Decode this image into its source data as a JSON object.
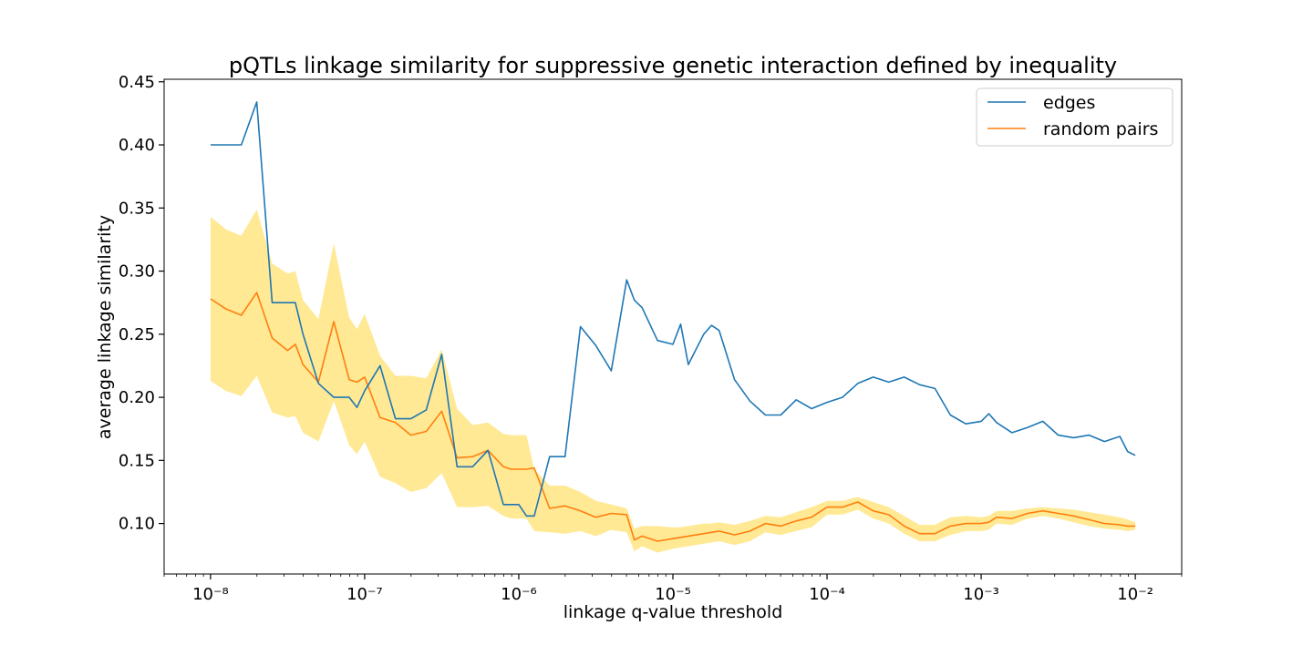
{
  "chart_data": {
    "type": "line",
    "title": "pQTLs linkage similarity for suppressive genetic interaction defined by inequality",
    "xlabel": "linkage q-value threshold",
    "ylabel": "average linkage similarity",
    "xscale": "log",
    "xlim": [
      5e-09,
      0.02
    ],
    "ylim": [
      0.06,
      0.452
    ],
    "grid": false,
    "legend_position": "top-right",
    "x_log10": [
      -8.0,
      -7.9,
      -7.8,
      -7.7,
      -7.6,
      -7.5,
      -7.45,
      -7.4,
      -7.3,
      -7.2,
      -7.1,
      -7.05,
      -7.0,
      -6.9,
      -6.8,
      -6.7,
      -6.6,
      -6.5,
      -6.4,
      -6.3,
      -6.2,
      -6.1,
      -6.05,
      -6.0,
      -5.95,
      -5.9,
      -5.8,
      -5.7,
      -5.6,
      -5.5,
      -5.4,
      -5.3,
      -5.25,
      -5.2,
      -5.1,
      -5.0,
      -4.95,
      -4.9,
      -4.8,
      -4.75,
      -4.7,
      -4.6,
      -4.5,
      -4.4,
      -4.3,
      -4.2,
      -4.1,
      -4.0,
      -3.9,
      -3.8,
      -3.7,
      -3.6,
      -3.5,
      -3.4,
      -3.3,
      -3.2,
      -3.1,
      -3.0,
      -2.95,
      -2.9,
      -2.8,
      -2.7,
      -2.6,
      -2.5,
      -2.4,
      -2.3,
      -2.2,
      -2.1,
      -2.05,
      -2.0
    ],
    "x_tick_exponents": [
      -8,
      -7,
      -6,
      -5,
      -4,
      -3,
      -2
    ],
    "x_tick_labels": [
      "10⁻⁸",
      "10⁻⁷",
      "10⁻⁶",
      "10⁻⁵",
      "10⁻⁴",
      "10⁻³",
      "10⁻²"
    ],
    "y_ticks": [
      0.1,
      0.15,
      0.2,
      0.25,
      0.3,
      0.35,
      0.4,
      0.45
    ],
    "y_tick_labels": [
      "0.10",
      "0.15",
      "0.20",
      "0.25",
      "0.30",
      "0.35",
      "0.40",
      "0.45"
    ],
    "series": [
      {
        "name": "edges",
        "color": "#1f77b4",
        "values": [
          0.4,
          0.4,
          0.4,
          0.434,
          0.275,
          0.275,
          0.275,
          0.25,
          0.211,
          0.2,
          0.2,
          0.192,
          0.205,
          0.225,
          0.183,
          0.183,
          0.19,
          0.234,
          0.145,
          0.145,
          0.158,
          0.115,
          0.115,
          0.115,
          0.106,
          0.106,
          0.153,
          0.153,
          0.256,
          0.241,
          0.221,
          0.293,
          0.277,
          0.271,
          0.245,
          0.242,
          0.258,
          0.226,
          0.25,
          0.257,
          0.253,
          0.214,
          0.197,
          0.186,
          0.186,
          0.198,
          0.191,
          0.196,
          0.2,
          0.211,
          0.216,
          0.212,
          0.216,
          0.21,
          0.207,
          0.186,
          0.179,
          0.181,
          0.187,
          0.18,
          0.172,
          0.176,
          0.181,
          0.17,
          0.168,
          0.17,
          0.165,
          0.169,
          0.157,
          0.154
        ]
      },
      {
        "name": "random pairs",
        "color": "#ff7f0e",
        "band_color": "#ffe066",
        "values": [
          0.278,
          0.27,
          0.265,
          0.283,
          0.247,
          0.237,
          0.242,
          0.226,
          0.212,
          0.26,
          0.214,
          0.212,
          0.216,
          0.184,
          0.18,
          0.17,
          0.173,
          0.189,
          0.152,
          0.153,
          0.158,
          0.145,
          0.143,
          0.143,
          0.143,
          0.144,
          0.112,
          0.114,
          0.11,
          0.105,
          0.108,
          0.107,
          0.087,
          0.09,
          0.086,
          0.088,
          0.089,
          0.09,
          0.092,
          0.093,
          0.094,
          0.091,
          0.094,
          0.1,
          0.098,
          0.102,
          0.105,
          0.113,
          0.113,
          0.117,
          0.11,
          0.107,
          0.098,
          0.092,
          0.092,
          0.098,
          0.1,
          0.1,
          0.101,
          0.105,
          0.104,
          0.108,
          0.11,
          0.108,
          0.106,
          0.103,
          0.1,
          0.099,
          0.098,
          0.098
        ],
        "band_upper": [
          0.343,
          0.333,
          0.328,
          0.349,
          0.306,
          0.298,
          0.3,
          0.277,
          0.262,
          0.322,
          0.263,
          0.254,
          0.266,
          0.233,
          0.217,
          0.217,
          0.215,
          0.238,
          0.191,
          0.178,
          0.18,
          0.171,
          0.17,
          0.17,
          0.17,
          0.143,
          0.13,
          0.13,
          0.125,
          0.118,
          0.115,
          0.112,
          0.096,
          0.098,
          0.098,
          0.097,
          0.097,
          0.098,
          0.1,
          0.1,
          0.101,
          0.099,
          0.102,
          0.106,
          0.105,
          0.109,
          0.113,
          0.118,
          0.118,
          0.121,
          0.117,
          0.113,
          0.106,
          0.099,
          0.099,
          0.105,
          0.106,
          0.105,
          0.106,
          0.11,
          0.11,
          0.112,
          0.113,
          0.112,
          0.111,
          0.109,
          0.107,
          0.105,
          0.103,
          0.101
        ],
        "band_lower": [
          0.213,
          0.205,
          0.201,
          0.217,
          0.188,
          0.184,
          0.185,
          0.172,
          0.165,
          0.197,
          0.162,
          0.155,
          0.165,
          0.137,
          0.132,
          0.125,
          0.128,
          0.14,
          0.113,
          0.113,
          0.114,
          0.106,
          0.104,
          0.104,
          0.104,
          0.094,
          0.093,
          0.092,
          0.094,
          0.09,
          0.095,
          0.093,
          0.078,
          0.082,
          0.077,
          0.08,
          0.081,
          0.082,
          0.084,
          0.085,
          0.086,
          0.083,
          0.086,
          0.093,
          0.091,
          0.094,
          0.097,
          0.107,
          0.107,
          0.111,
          0.104,
          0.1,
          0.092,
          0.086,
          0.086,
          0.091,
          0.094,
          0.094,
          0.095,
          0.1,
          0.099,
          0.104,
          0.106,
          0.104,
          0.101,
          0.098,
          0.096,
          0.095,
          0.094,
          0.095
        ]
      }
    ]
  }
}
